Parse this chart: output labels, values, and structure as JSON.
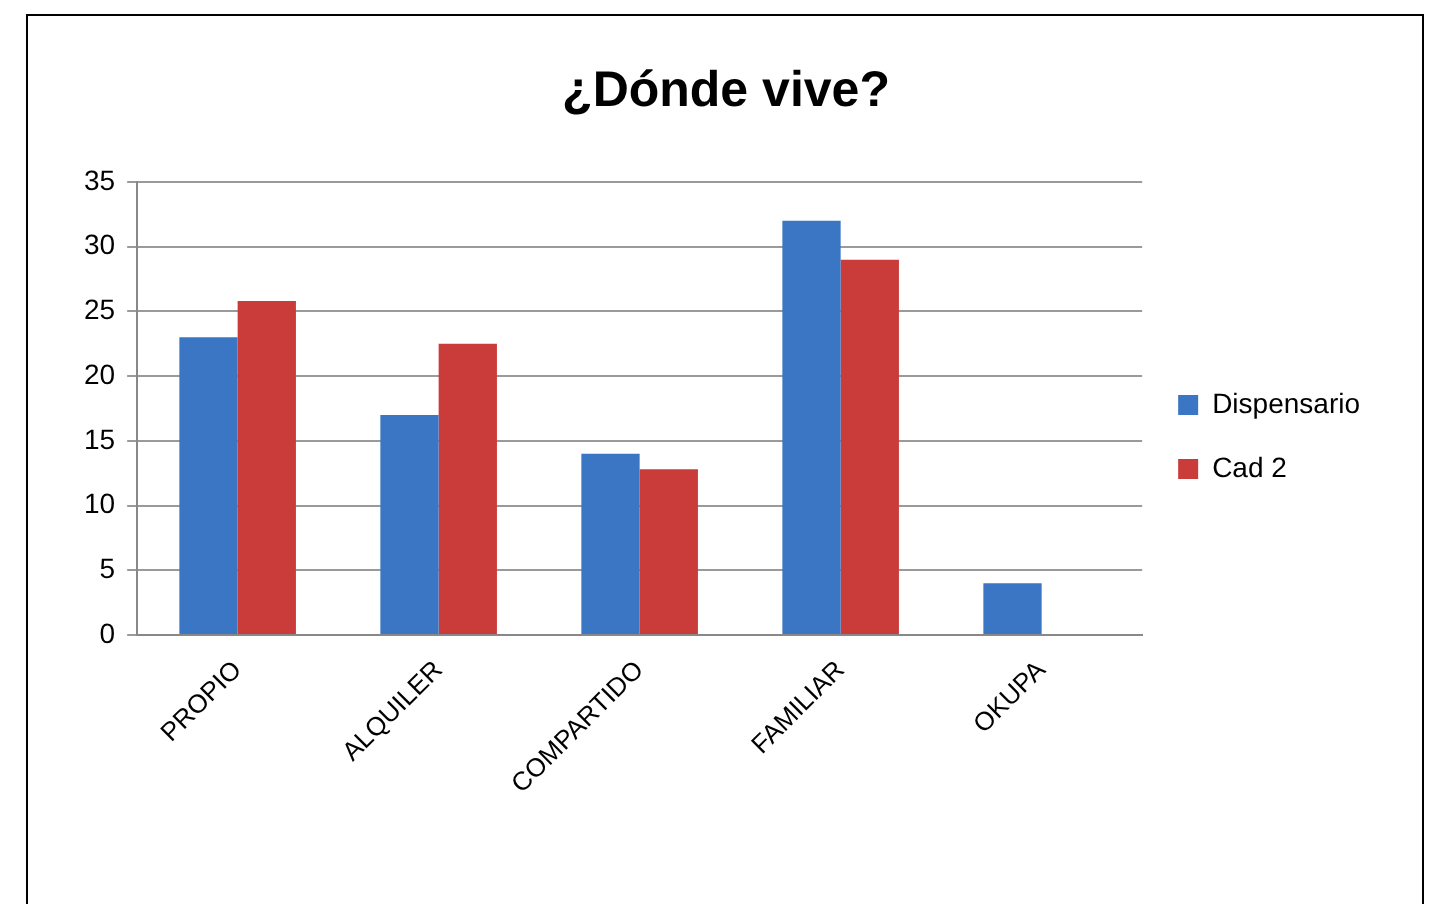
{
  "chart_data": {
    "type": "bar",
    "title": "¿Dónde vive?",
    "categories": [
      "PROPIO",
      "ALQUILER",
      "COMPARTIDO",
      "FAMILIAR",
      "OKUPA"
    ],
    "series": [
      {
        "name": "Dispensario",
        "color": "#3b76c4",
        "values": [
          23,
          17,
          14,
          32,
          4
        ]
      },
      {
        "name": "Cad 2",
        "color": "#c93c3a",
        "values": [
          25.8,
          22.5,
          12.8,
          29,
          null
        ]
      }
    ],
    "ylim": [
      0,
      35
    ],
    "yticks": [
      0,
      5,
      10,
      15,
      20,
      25,
      30,
      35
    ],
    "grid": "y",
    "legend": "right"
  }
}
